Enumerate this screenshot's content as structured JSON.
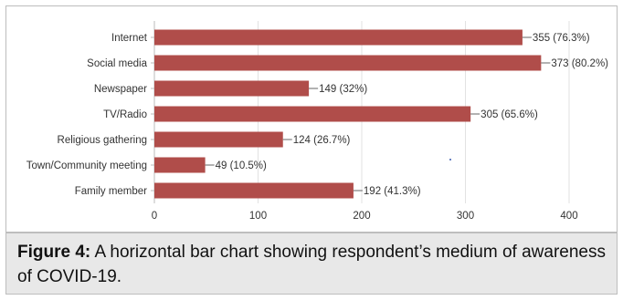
{
  "caption": {
    "label": "Figure 4:",
    "text": " A horizontal bar chart showing respondent’s medium of awareness of COVID-19."
  },
  "colors": {
    "bar": "#b04d4a",
    "gridline": "#e2e2e2",
    "axis": "#bbbbbb",
    "caption_bg": "#e8e8e8"
  },
  "chart_data": {
    "type": "bar",
    "orientation": "horizontal",
    "title": "",
    "xlabel": "",
    "ylabel": "",
    "categories": [
      "Internet",
      "Social media",
      "Newspaper",
      "TV/Radio",
      "Religious gathering",
      "Town/Community meeting",
      "Family member"
    ],
    "values": [
      355,
      373,
      149,
      305,
      124,
      49,
      192
    ],
    "value_labels": [
      "355 (76.3%)",
      "373 (80.2%)",
      "149 (32%)",
      "305 (65.6%)",
      "124 (26.7%)",
      "49 (10.5%)",
      "192 (41.3%)"
    ],
    "xlim": [
      0,
      400
    ],
    "x_ticks": [
      0,
      100,
      200,
      300,
      400
    ],
    "grid": true,
    "legend": "none"
  }
}
